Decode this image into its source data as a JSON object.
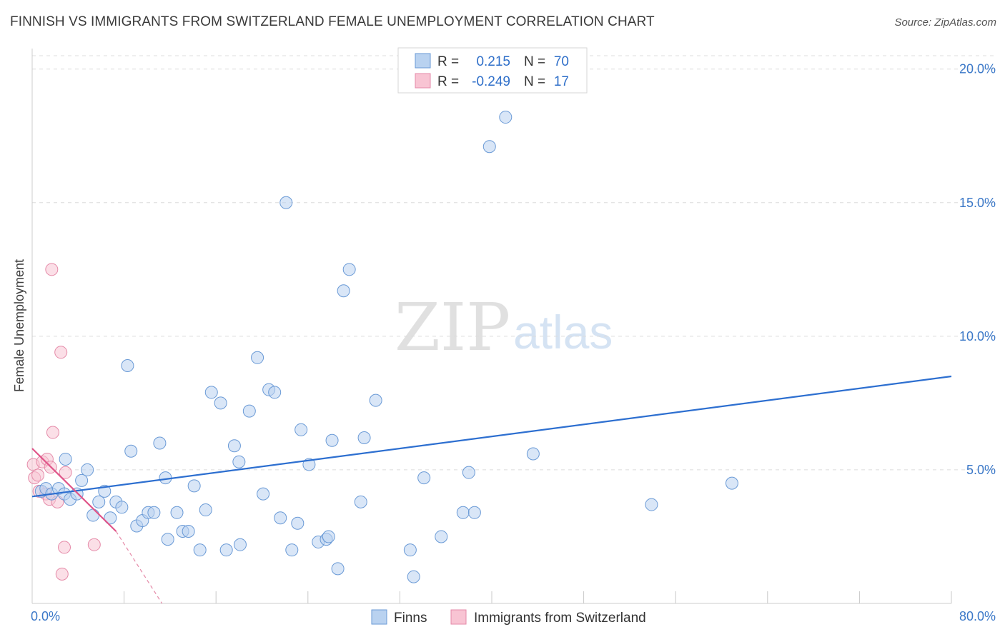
{
  "header": {
    "title": "FINNISH VS IMMIGRANTS FROM SWITZERLAND FEMALE UNEMPLOYMENT CORRELATION CHART",
    "source": "Source: ZipAtlas.com"
  },
  "watermark": {
    "part1": "ZIP",
    "part2": "atlas"
  },
  "legend_box": {
    "rows": [
      {
        "r_label": "R =",
        "r_value": "0.215",
        "n_label": "N =",
        "n_value": "70"
      },
      {
        "r_label": "R =",
        "r_value": "-0.249",
        "n_label": "N =",
        "n_value": "17"
      }
    ]
  },
  "bottom_legend": {
    "finns": "Finns",
    "swiss": "Immigrants from Switzerland"
  },
  "chart_data": {
    "type": "scatter",
    "title": "FINNISH VS IMMIGRANTS FROM SWITZERLAND FEMALE UNEMPLOYMENT CORRELATION CHART",
    "xlabel": "",
    "ylabel": "Female Unemployment",
    "xlim": [
      0,
      80
    ],
    "ylim": [
      0,
      20.5
    ],
    "x_tick_labels": [
      {
        "value": 0,
        "label": "0.0%"
      },
      {
        "value": 80,
        "label": "80.0%"
      }
    ],
    "y_tick_labels": [
      {
        "value": 5,
        "label": "5.0%"
      },
      {
        "value": 10,
        "label": "10.0%"
      },
      {
        "value": 15,
        "label": "15.0%"
      },
      {
        "value": 20,
        "label": "20.0%"
      }
    ],
    "x_minor_ticks": [
      0,
      8,
      16,
      24,
      32,
      40,
      48,
      56,
      64,
      72,
      80
    ],
    "colors": {
      "finns_fill": "#b9d2f0",
      "finns_stroke": "#6a9ad6",
      "finns_line": "#2d6fd0",
      "swiss_fill": "#f8c4d3",
      "swiss_stroke": "#e58aa8",
      "swiss_line": "#e0568a",
      "grid": "#dcdcdc"
    },
    "series": [
      {
        "name": "Finns",
        "r": 0.215,
        "n": 70,
        "trend": {
          "x": [
            0,
            80
          ],
          "y": [
            4.0,
            8.5
          ]
        },
        "points": [
          [
            0.8,
            4.2
          ],
          [
            1.2,
            4.3
          ],
          [
            1.7,
            4.1
          ],
          [
            2.3,
            4.3
          ],
          [
            2.8,
            4.1
          ],
          [
            2.9,
            5.4
          ],
          [
            3.3,
            3.9
          ],
          [
            3.9,
            4.1
          ],
          [
            4.3,
            4.6
          ],
          [
            4.8,
            5.0
          ],
          [
            5.3,
            3.3
          ],
          [
            5.8,
            3.8
          ],
          [
            6.3,
            4.2
          ],
          [
            6.8,
            3.2
          ],
          [
            7.3,
            3.8
          ],
          [
            7.8,
            3.6
          ],
          [
            8.3,
            8.9
          ],
          [
            8.6,
            5.7
          ],
          [
            9.1,
            2.9
          ],
          [
            9.6,
            3.1
          ],
          [
            10.1,
            3.4
          ],
          [
            10.6,
            3.4
          ],
          [
            11.1,
            6.0
          ],
          [
            11.6,
            4.7
          ],
          [
            11.8,
            2.4
          ],
          [
            12.6,
            3.4
          ],
          [
            13.1,
            2.7
          ],
          [
            13.6,
            2.7
          ],
          [
            14.1,
            4.4
          ],
          [
            14.6,
            2.0
          ],
          [
            15.1,
            3.5
          ],
          [
            15.6,
            7.9
          ],
          [
            16.4,
            7.5
          ],
          [
            16.9,
            2.0
          ],
          [
            17.6,
            5.9
          ],
          [
            18.0,
            5.3
          ],
          [
            18.1,
            2.2
          ],
          [
            18.9,
            7.2
          ],
          [
            19.6,
            9.2
          ],
          [
            20.1,
            4.1
          ],
          [
            20.6,
            8.0
          ],
          [
            21.1,
            7.9
          ],
          [
            21.6,
            3.2
          ],
          [
            22.1,
            15.0
          ],
          [
            22.6,
            2.0
          ],
          [
            23.1,
            3.0
          ],
          [
            23.4,
            6.5
          ],
          [
            24.1,
            5.2
          ],
          [
            24.9,
            2.3
          ],
          [
            25.6,
            2.4
          ],
          [
            25.8,
            2.5
          ],
          [
            26.1,
            6.1
          ],
          [
            26.6,
            1.3
          ],
          [
            27.1,
            11.7
          ],
          [
            27.6,
            12.5
          ],
          [
            28.6,
            3.8
          ],
          [
            28.9,
            6.2
          ],
          [
            29.9,
            7.6
          ],
          [
            32.9,
            2.0
          ],
          [
            33.2,
            1.0
          ],
          [
            34.1,
            4.7
          ],
          [
            35.6,
            2.5
          ],
          [
            37.5,
            3.4
          ],
          [
            38.0,
            4.9
          ],
          [
            38.5,
            3.4
          ],
          [
            39.8,
            17.1
          ],
          [
            41.2,
            18.2
          ],
          [
            43.6,
            5.6
          ],
          [
            53.9,
            3.7
          ],
          [
            60.9,
            4.5
          ]
        ]
      },
      {
        "name": "Immigrants from Switzerland",
        "r": -0.249,
        "n": 17,
        "trend": {
          "x": [
            0,
            7.3
          ],
          "y": [
            5.8,
            2.7
          ]
        },
        "trend_dashed_extension": {
          "x": [
            7.3,
            11.3
          ],
          "y": [
            2.7,
            0.0
          ]
        },
        "points": [
          [
            0.1,
            5.2
          ],
          [
            0.2,
            4.7
          ],
          [
            0.5,
            4.8
          ],
          [
            0.6,
            4.2
          ],
          [
            0.9,
            5.3
          ],
          [
            1.2,
            4.1
          ],
          [
            1.3,
            5.4
          ],
          [
            1.5,
            3.9
          ],
          [
            1.6,
            5.1
          ],
          [
            1.7,
            12.5
          ],
          [
            1.8,
            6.4
          ],
          [
            2.2,
            3.8
          ],
          [
            2.5,
            9.4
          ],
          [
            2.6,
            1.1
          ],
          [
            2.8,
            2.1
          ],
          [
            2.9,
            4.9
          ],
          [
            5.4,
            2.2
          ]
        ]
      }
    ]
  }
}
